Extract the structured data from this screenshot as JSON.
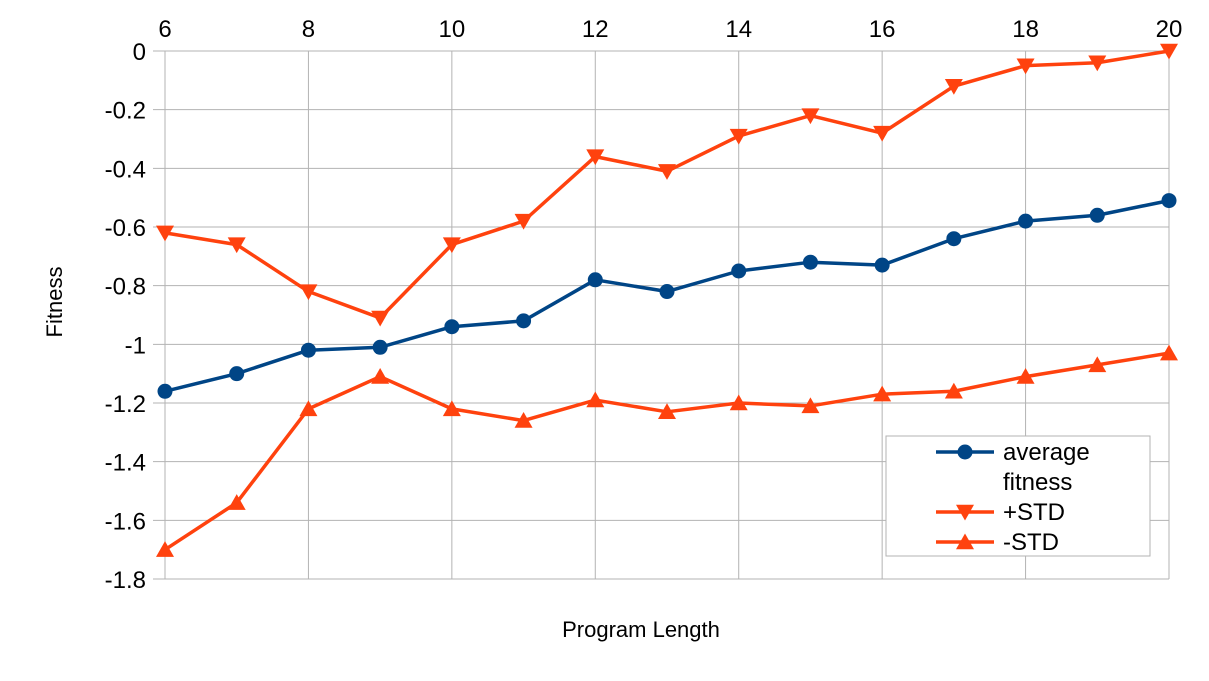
{
  "chart_data": {
    "type": "line",
    "title": "",
    "xlabel": "Program Length",
    "ylabel": "Fitness",
    "x": [
      6,
      7,
      8,
      9,
      10,
      11,
      12,
      13,
      14,
      15,
      16,
      17,
      18,
      19,
      20
    ],
    "xlim": [
      6,
      20
    ],
    "ylim": [
      -1.8,
      0
    ],
    "x_ticks": [
      6,
      8,
      10,
      12,
      14,
      16,
      18,
      20
    ],
    "y_ticks": [
      0,
      -0.2,
      -0.4,
      -0.6,
      -0.8,
      -1,
      -1.2,
      -1.4,
      -1.6,
      -1.8
    ],
    "x_axis_position": "top",
    "grid": true,
    "legend_position": "bottom-right",
    "series": [
      {
        "name": "average fitness",
        "legend_lines": [
          "average",
          "fitness"
        ],
        "color": "#004586",
        "marker": "circle",
        "values": [
          -1.16,
          -1.1,
          -1.02,
          -1.01,
          -0.94,
          -0.92,
          -0.78,
          -0.82,
          -0.75,
          -0.72,
          -0.73,
          -0.64,
          -0.58,
          -0.56,
          -0.51
        ]
      },
      {
        "name": "+STD",
        "legend_lines": [
          "+STD"
        ],
        "color": "#ff420e",
        "marker": "triangle-down",
        "values": [
          -0.62,
          -0.66,
          -0.82,
          -0.91,
          -0.66,
          -0.58,
          -0.36,
          -0.41,
          -0.29,
          -0.22,
          -0.28,
          -0.12,
          -0.05,
          -0.04,
          0.0
        ]
      },
      {
        "name": "-STD",
        "legend_lines": [
          "-STD"
        ],
        "color": "#ff420e",
        "marker": "triangle-up",
        "values": [
          -1.7,
          -1.54,
          -1.22,
          -1.11,
          -1.22,
          -1.26,
          -1.19,
          -1.23,
          -1.2,
          -1.21,
          -1.17,
          -1.16,
          -1.11,
          -1.07,
          -1.03
        ]
      }
    ]
  }
}
